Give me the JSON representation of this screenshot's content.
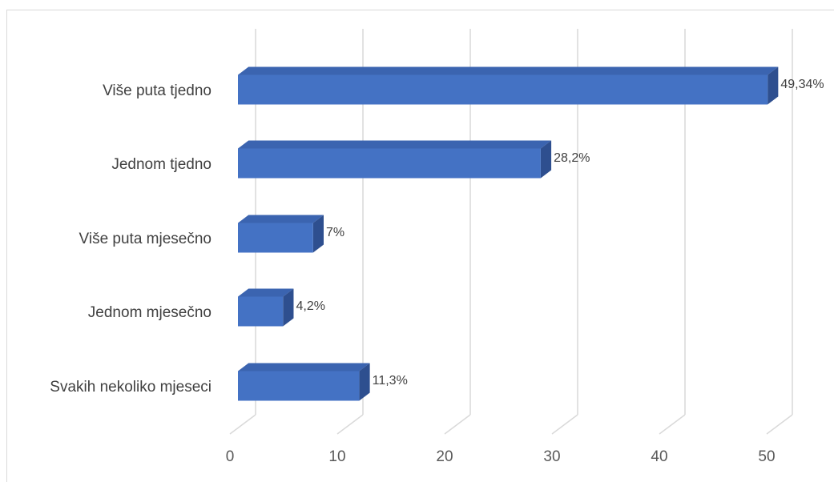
{
  "chart_data": {
    "type": "bar",
    "orientation": "horizontal",
    "style": "3d",
    "title": "",
    "xlabel": "",
    "ylabel": "",
    "categories": [
      "Više puta tjedno",
      "Jednom tjedno",
      "Više puta mjesečno",
      "Jednom mjesečno",
      "Svakih nekoliko mjeseci"
    ],
    "values": [
      49.34,
      28.2,
      7,
      4.2,
      11.3
    ],
    "data_labels": [
      "49,34%",
      "28,2%",
      "7%",
      "4,2%",
      "11,3%"
    ],
    "xlim": [
      0,
      50
    ],
    "xticks": [
      0,
      10,
      20,
      30,
      40,
      50
    ],
    "xtick_labels": [
      "0",
      "10",
      "20",
      "30",
      "40",
      "50"
    ],
    "grid": true,
    "legend": "none",
    "colors": {
      "bar_front": "#4472c4",
      "bar_top": "#3b64b0",
      "bar_side": "#2e4f8f",
      "grid": "#d9d9d9"
    }
  }
}
